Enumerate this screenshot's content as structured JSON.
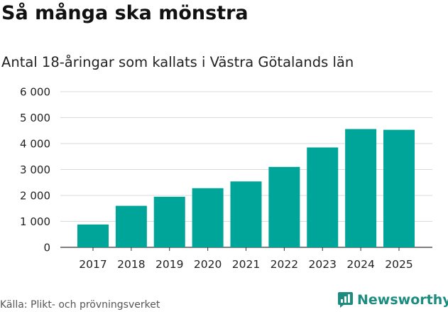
{
  "header": {
    "title": "Så många ska mönstra",
    "subtitle": "Antal 18-åringar som kallats i Västra Götalands län"
  },
  "footer": {
    "source": "Källa: Plikt- och prövningsverket",
    "brand": "Newsworthy",
    "brand_icon": "bar-chart-speech-icon"
  },
  "colors": {
    "bar": "#00a59a",
    "brand": "#1c8c81",
    "grid": "#d9d9d9"
  },
  "chart_data": {
    "type": "bar",
    "title": "Så många ska mönstra",
    "subtitle": "Antal 18-åringar som kallats i Västra Götalands län",
    "categories": [
      "2017",
      "2018",
      "2019",
      "2020",
      "2021",
      "2022",
      "2023",
      "2024",
      "2025"
    ],
    "values": [
      880,
      1600,
      1950,
      2280,
      2540,
      3100,
      3850,
      4560,
      4530
    ],
    "ylim": [
      0,
      6000
    ],
    "yticks": [
      0,
      1000,
      2000,
      3000,
      4000,
      5000,
      6000
    ],
    "ytick_labels": [
      "0",
      "1 000",
      "2 000",
      "3 000",
      "4 000",
      "5 000",
      "6 000"
    ],
    "xlabel": "",
    "ylabel": "",
    "grid": true,
    "legend": "none"
  }
}
